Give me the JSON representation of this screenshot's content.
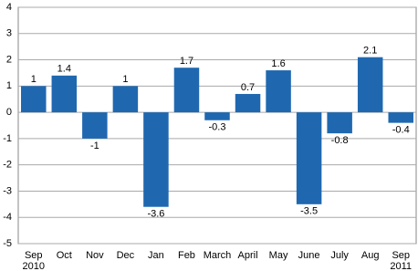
{
  "chart_data": {
    "type": "bar",
    "categories": [
      [
        "Sep",
        "2010"
      ],
      [
        "Oct"
      ],
      [
        "Nov"
      ],
      [
        "Dec"
      ],
      [
        "Jan"
      ],
      [
        "Feb"
      ],
      [
        "March"
      ],
      [
        "April"
      ],
      [
        "May"
      ],
      [
        "June"
      ],
      [
        "July"
      ],
      [
        "Aug"
      ],
      [
        "Sep",
        "2011"
      ]
    ],
    "values": [
      1,
      1.4,
      -1,
      1,
      -3.6,
      1.7,
      -0.3,
      0.7,
      1.6,
      -3.5,
      -0.8,
      2.1,
      -0.4
    ],
    "color": "#1f68b0",
    "ylim": [
      -5,
      4
    ],
    "yticks": [
      -5,
      -4,
      -3,
      -2,
      -1,
      0,
      1,
      2,
      3,
      4
    ],
    "grid": true
  }
}
